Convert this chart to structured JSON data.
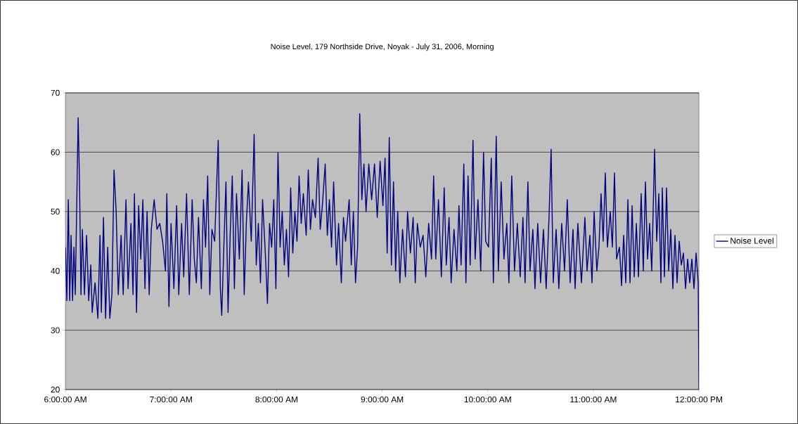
{
  "chart_data": {
    "type": "line",
    "title": "Noise Level, 179 Northside Drive, Noyak - July 31, 2006, Morning",
    "x": [
      6.0,
      6.013,
      6.027,
      6.04,
      6.053,
      6.067,
      6.08,
      6.093,
      6.12,
      6.133,
      6.147,
      6.16,
      6.18,
      6.2,
      6.22,
      6.24,
      6.253,
      6.28,
      6.307,
      6.327,
      6.34,
      6.36,
      6.38,
      6.4,
      6.42,
      6.44,
      6.46,
      6.48,
      6.5,
      6.527,
      6.547,
      6.573,
      6.593,
      6.62,
      6.64,
      6.653,
      6.673,
      6.693,
      6.713,
      6.733,
      6.753,
      6.773,
      6.793,
      6.813,
      6.84,
      6.867,
      6.893,
      6.92,
      6.947,
      6.96,
      6.98,
      7.0,
      7.027,
      7.053,
      7.073,
      7.1,
      7.12,
      7.147,
      7.173,
      7.2,
      7.22,
      7.24,
      7.26,
      7.287,
      7.307,
      7.327,
      7.347,
      7.367,
      7.387,
      7.413,
      7.447,
      7.467,
      7.48,
      7.5,
      7.52,
      7.54,
      7.56,
      7.58,
      7.6,
      7.62,
      7.647,
      7.673,
      7.693,
      7.713,
      7.733,
      7.76,
      7.787,
      7.807,
      7.827,
      7.847,
      7.867,
      7.893,
      7.913,
      7.933,
      7.953,
      7.973,
      7.993,
      8.013,
      8.033,
      8.053,
      8.073,
      8.093,
      8.113,
      8.133,
      8.153,
      8.173,
      8.193,
      8.213,
      8.233,
      8.253,
      8.28,
      8.3,
      8.32,
      8.34,
      8.367,
      8.393,
      8.413,
      8.433,
      8.46,
      8.48,
      8.5,
      8.52,
      8.54,
      8.567,
      8.587,
      8.613,
      8.633,
      8.653,
      8.687,
      8.707,
      8.727,
      8.747,
      8.767,
      8.787,
      8.807,
      8.827,
      8.847,
      8.873,
      8.9,
      8.927,
      8.953,
      8.98,
      9.007,
      9.027,
      9.047,
      9.067,
      9.087,
      9.107,
      9.127,
      9.147,
      9.167,
      9.193,
      9.22,
      9.24,
      9.267,
      9.293,
      9.313,
      9.333,
      9.36,
      9.387,
      9.413,
      9.44,
      9.467,
      9.487,
      9.507,
      9.533,
      9.56,
      9.587,
      9.607,
      9.633,
      9.653,
      9.68,
      9.707,
      9.727,
      9.747,
      9.773,
      9.793,
      9.813,
      9.833,
      9.86,
      9.88,
      9.907,
      9.933,
      9.96,
      9.98,
      10.007,
      10.033,
      10.053,
      10.08,
      10.1,
      10.127,
      10.153,
      10.18,
      10.2,
      10.227,
      10.253,
      10.28,
      10.307,
      10.333,
      10.353,
      10.38,
      10.4,
      10.427,
      10.447,
      10.473,
      10.5,
      10.527,
      10.553,
      10.58,
      10.6,
      10.62,
      10.647,
      10.673,
      10.7,
      10.727,
      10.753,
      10.78,
      10.807,
      10.827,
      10.853,
      10.887,
      10.92,
      10.94,
      10.967,
      10.987,
      11.007,
      11.033,
      11.053,
      11.073,
      11.093,
      11.113,
      11.133,
      11.16,
      11.18,
      11.2,
      11.22,
      11.247,
      11.267,
      11.287,
      11.307,
      11.327,
      11.347,
      11.367,
      11.387,
      11.407,
      11.427,
      11.453,
      11.473,
      11.493,
      11.513,
      11.533,
      11.553,
      11.58,
      11.6,
      11.62,
      11.64,
      11.653,
      11.673,
      11.693,
      11.713,
      11.733,
      11.753,
      11.773,
      11.793,
      11.813,
      11.833,
      11.853,
      11.873,
      11.893,
      11.913,
      11.933,
      11.953,
      11.973,
      11.993,
      12.0
    ],
    "series": [
      {
        "name": "Noise Level",
        "color": "#000080",
        "values": [
          44,
          35,
          52,
          35,
          46,
          35,
          44,
          36,
          65.8,
          55,
          36,
          47,
          36,
          46,
          35,
          41,
          33,
          38,
          32,
          46,
          33,
          49,
          32,
          44,
          32,
          36,
          57,
          50,
          36,
          46,
          36,
          52,
          37,
          48,
          36,
          53,
          33,
          51,
          42,
          52,
          37,
          50,
          36,
          47,
          52,
          47,
          48,
          45,
          40,
          53,
          34,
          48,
          37,
          51,
          36,
          48,
          39,
          53,
          36,
          52,
          42,
          38,
          49,
          37,
          52,
          44,
          56,
          36,
          47,
          45,
          62,
          37,
          32.5,
          44,
          55,
          33,
          46,
          56,
          37,
          53,
          42,
          57,
          36,
          48,
          55,
          45,
          63,
          41,
          48,
          38,
          52,
          43,
          34.5,
          48,
          44,
          52,
          37,
          60,
          44,
          50,
          41,
          47,
          39,
          54,
          43,
          50,
          45,
          56,
          48,
          53,
          46,
          57,
          47,
          52,
          49,
          59,
          47,
          51,
          58,
          46,
          52,
          44,
          55,
          41,
          48,
          38,
          49,
          45,
          52,
          41,
          50,
          38,
          44,
          66.5,
          52,
          58,
          50,
          58,
          52,
          58,
          49,
          58.5,
          51,
          59,
          43,
          62.5,
          41,
          55,
          40,
          50,
          38,
          47,
          39,
          50,
          43,
          49,
          38,
          48,
          44,
          46,
          39,
          48,
          42,
          56,
          42,
          52,
          39,
          54,
          41,
          49,
          38,
          47,
          40,
          51,
          41,
          58,
          38,
          56,
          41,
          62,
          42,
          52,
          40,
          60,
          45,
          44,
          59,
          38,
          62.7,
          40,
          55,
          42,
          48,
          38,
          56,
          40,
          48,
          39,
          49,
          38,
          55,
          40,
          47,
          37,
          48,
          38,
          47,
          37,
          49,
          60.5,
          38,
          47,
          37,
          48,
          40,
          52,
          38,
          47,
          37,
          48,
          38,
          49,
          40,
          46,
          38,
          50,
          40,
          44,
          53,
          45,
          56.5,
          44,
          50,
          44,
          56.5,
          42,
          44,
          37.5,
          46,
          38,
          52,
          38,
          51,
          39,
          48,
          39,
          53,
          40,
          55,
          42,
          48,
          40,
          60.5,
          45,
          53,
          38,
          54,
          39,
          54,
          40,
          47,
          37,
          46,
          38,
          45,
          41,
          43,
          37,
          42,
          38,
          42,
          37,
          43,
          38,
          20
        ]
      }
    ],
    "xlim": [
      6,
      12
    ],
    "ylim": [
      20,
      70
    ],
    "xticks": [
      {
        "value": 6,
        "label": "6:00:00 AM"
      },
      {
        "value": 7,
        "label": "7:00:00 AM"
      },
      {
        "value": 8,
        "label": "8:00:00 AM"
      },
      {
        "value": 9,
        "label": "9:00:00 AM"
      },
      {
        "value": 10,
        "label": "10:00:00 AM"
      },
      {
        "value": 11,
        "label": "11:00:00 AM"
      },
      {
        "value": 12,
        "label": "12:00:00 PM"
      }
    ],
    "yticks": [
      20,
      30,
      40,
      50,
      60,
      70
    ],
    "grid": "y",
    "legend": "right",
    "marker": "none",
    "line_style": "solid"
  }
}
